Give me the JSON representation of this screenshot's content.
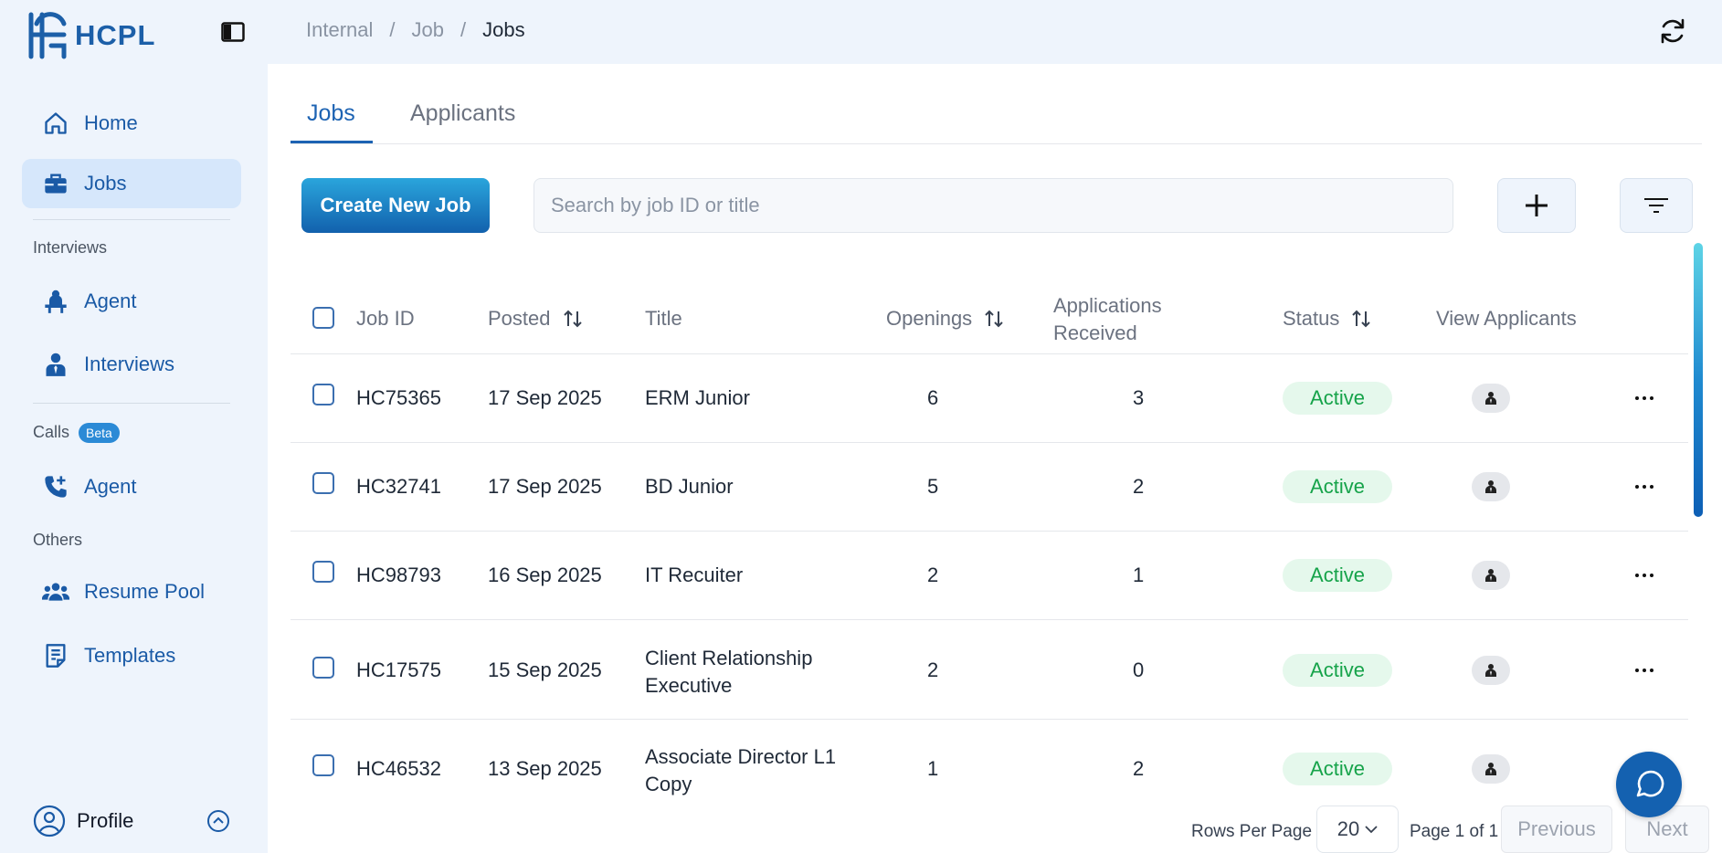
{
  "brand": {
    "name": "HCPL"
  },
  "sidebar": {
    "items": [
      {
        "label": "Home",
        "icon": "home-icon"
      },
      {
        "label": "Jobs",
        "icon": "briefcase-icon",
        "active": true
      }
    ],
    "sections": [
      {
        "label": "Interviews",
        "items": [
          {
            "label": "Agent",
            "icon": "agent-desk-icon"
          },
          {
            "label": "Interviews",
            "icon": "person-tie-icon"
          }
        ]
      },
      {
        "label": "Calls",
        "badge": "Beta",
        "items": [
          {
            "label": "Agent",
            "icon": "phone-plus-icon"
          }
        ]
      },
      {
        "label": "Others",
        "items": [
          {
            "label": "Resume Pool",
            "icon": "users-icon"
          },
          {
            "label": "Templates",
            "icon": "document-icon"
          }
        ]
      }
    ],
    "profile": {
      "label": "Profile"
    }
  },
  "breadcrumb": [
    "Internal",
    "Job",
    "Jobs"
  ],
  "tabs": [
    "Jobs",
    "Applicants"
  ],
  "toolbar": {
    "create_label": "Create New Job",
    "search_placeholder": "Search by job ID or title"
  },
  "table": {
    "headers": {
      "job_id": "Job ID",
      "posted": "Posted",
      "title": "Title",
      "openings": "Openings",
      "applications_line1": "Applications",
      "applications_line2": "Received",
      "status": "Status",
      "view": "View Applicants"
    },
    "rows": [
      {
        "id": "HC75365",
        "posted": "17 Sep 2025",
        "title1": "ERM Junior",
        "title2": "",
        "openings": "6",
        "applications": "3",
        "status": "Active"
      },
      {
        "id": "HC32741",
        "posted": "17 Sep 2025",
        "title1": "BD Junior",
        "title2": "",
        "openings": "5",
        "applications": "2",
        "status": "Active"
      },
      {
        "id": "HC98793",
        "posted": "16 Sep 2025",
        "title1": "IT Recuiter",
        "title2": "",
        "openings": "2",
        "applications": "1",
        "status": "Active"
      },
      {
        "id": "HC17575",
        "posted": "15 Sep 2025",
        "title1": "Client Relationship",
        "title2": "Executive",
        "openings": "2",
        "applications": "0",
        "status": "Active"
      },
      {
        "id": "HC46532",
        "posted": "13 Sep 2025",
        "title1": "Associate Director L1",
        "title2": "Copy",
        "openings": "1",
        "applications": "2",
        "status": "Active"
      }
    ]
  },
  "pagination": {
    "rows_per_page_label": "Rows Per Page",
    "rows_per_page": "20",
    "page_text": "Page 1 of 1",
    "previous": "Previous",
    "next": "Next"
  },
  "colors": {
    "accent": "#1d63b3",
    "active_bg": "#e5f8ec",
    "active_text": "#16a34a",
    "sidebar_bg": "#eef4fc"
  }
}
